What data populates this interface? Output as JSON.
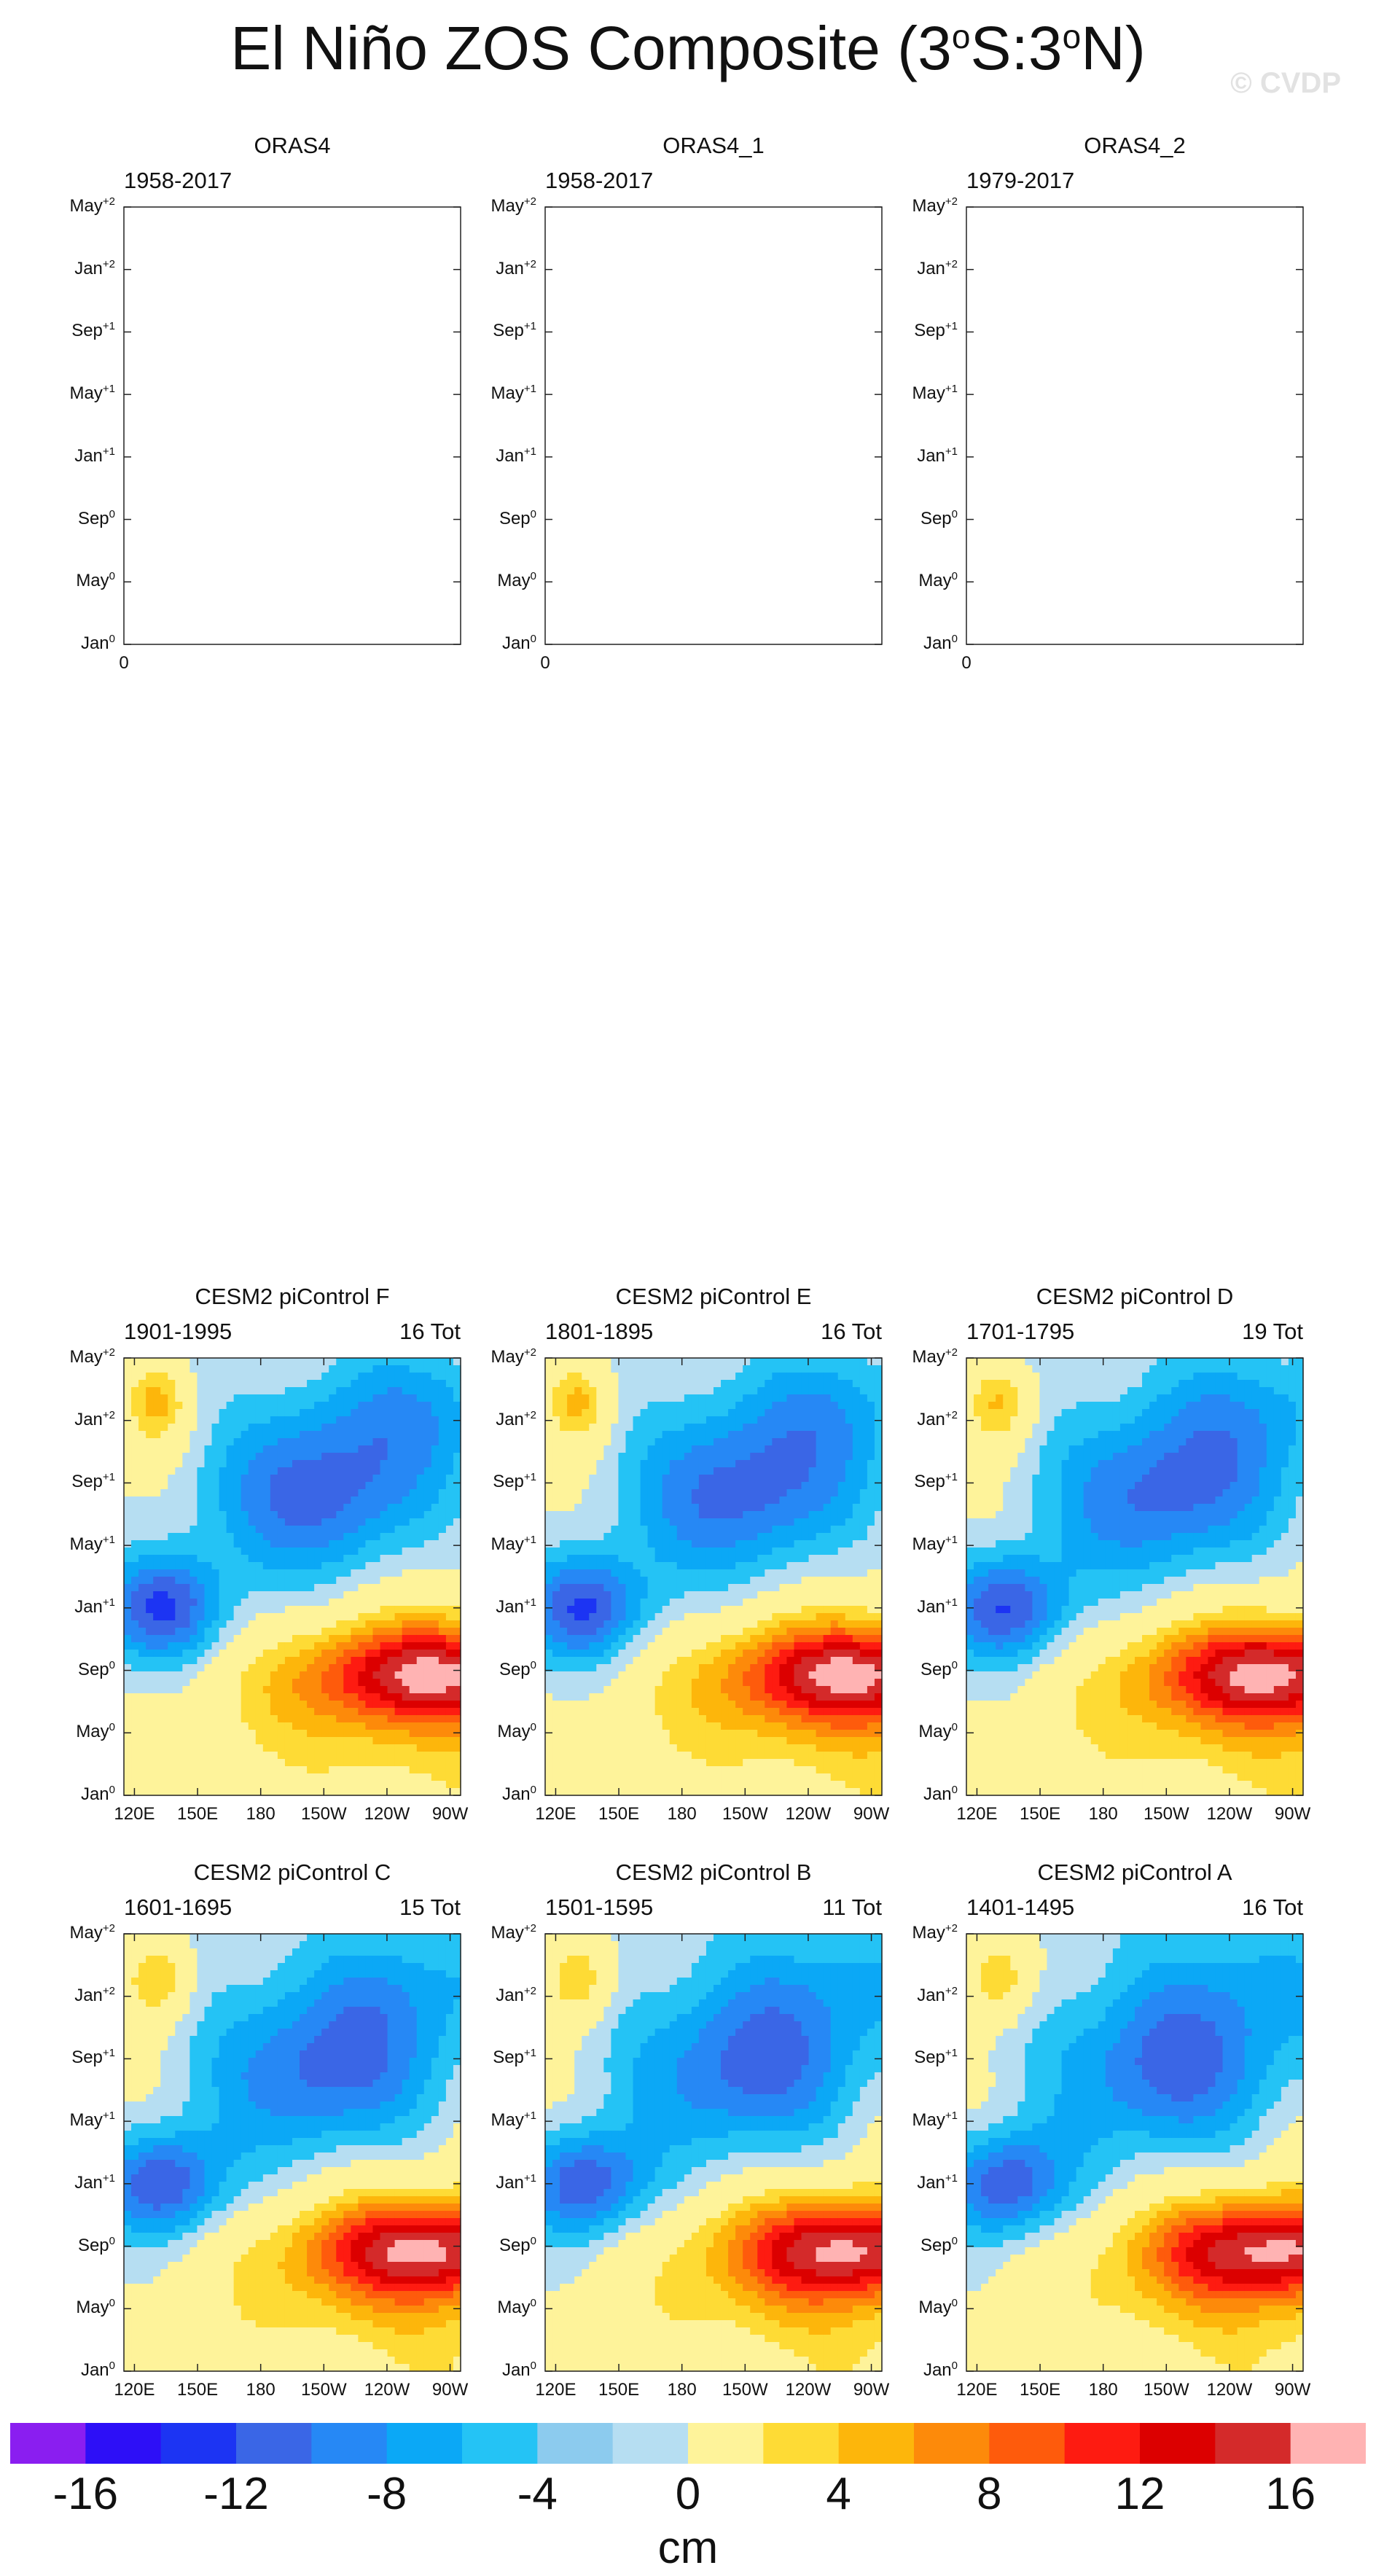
{
  "title": {
    "main": "El Niño ZOS Composite (3",
    "deg1": "o",
    "mid": "S:3",
    "deg2": "o",
    "end": "N)"
  },
  "watermark": "© CVDP",
  "colors": {
    "levels": [
      "#8a1ef0",
      "#2d0ff7",
      "#1c34f3",
      "#3a66e6",
      "#2688f5",
      "#0ba8f6",
      "#24c3f5",
      "#8ccbee",
      "#b6def2",
      "#fef39a",
      "#fedb35",
      "#fdb60b",
      "#fd8a0a",
      "#fe5b0c",
      "#fe1b11",
      "#dc0000",
      "#d42a2a",
      "#ffb3b3"
    ],
    "contour_line": "#555555",
    "frame": "#222222"
  },
  "chart_data": [
    {
      "type": "heatmap",
      "name": "ORAS4",
      "period": "1958-2017",
      "count": "",
      "empty": true,
      "yticks": [
        "Jan",
        "0",
        "May",
        "0",
        "Sep",
        "0",
        "Jan",
        "+1",
        "May",
        "+1",
        "Sep",
        "+1",
        "Jan",
        "+2",
        "May",
        "+2"
      ],
      "xticks": [
        "0"
      ]
    },
    {
      "type": "heatmap",
      "name": "ORAS4_1",
      "period": "1958-2017",
      "count": "",
      "empty": true,
      "xticks": [
        "0"
      ]
    },
    {
      "type": "heatmap",
      "name": "ORAS4_2",
      "period": "1979-2017",
      "count": "",
      "empty": true,
      "xticks": [
        "0"
      ]
    },
    {
      "type": "heatmap",
      "name": "CESM2 piControl F",
      "period": "1901-1995",
      "count": "16 Tot",
      "empty": false,
      "xticks": [
        "120E",
        "150E",
        "180",
        "150W",
        "120W",
        "90W"
      ]
    },
    {
      "type": "heatmap",
      "name": "CESM2 piControl E",
      "period": "1801-1895",
      "count": "16 Tot",
      "empty": false,
      "xticks": [
        "120E",
        "150E",
        "180",
        "150W",
        "120W",
        "90W"
      ]
    },
    {
      "type": "heatmap",
      "name": "CESM2 piControl D",
      "period": "1701-1795",
      "count": "19 Tot",
      "empty": false,
      "xticks": [
        "120E",
        "150E",
        "180",
        "150W",
        "120W",
        "90W"
      ]
    },
    {
      "type": "heatmap",
      "name": "CESM2 piControl C",
      "period": "1601-1695",
      "count": "15 Tot",
      "empty": false,
      "xticks": [
        "120E",
        "150E",
        "180",
        "150W",
        "120W",
        "90W"
      ]
    },
    {
      "type": "heatmap",
      "name": "CESM2 piControl B",
      "period": "1501-1595",
      "count": "11 Tot",
      "empty": false,
      "xticks": [
        "120E",
        "150E",
        "180",
        "150W",
        "120W",
        "90W"
      ]
    },
    {
      "type": "heatmap",
      "name": "CESM2 piControl A",
      "period": "1401-1495",
      "count": "16 Tot",
      "empty": false,
      "xticks": [
        "120E",
        "150E",
        "180",
        "150W",
        "120W",
        "90W"
      ]
    }
  ],
  "axis": {
    "ytick_labels": [
      {
        "m": "Jan",
        "s": "0"
      },
      {
        "m": "May",
        "s": "0"
      },
      {
        "m": "Sep",
        "s": "0"
      },
      {
        "m": "Jan",
        "s": "+1"
      },
      {
        "m": "May",
        "s": "+1"
      },
      {
        "m": "Sep",
        "s": "+1"
      },
      {
        "m": "Jan",
        "s": "+2"
      },
      {
        "m": "May",
        "s": "+2"
      }
    ],
    "xtick_labels_full": [
      "120E",
      "150E",
      "180",
      "150W",
      "120W",
      "90W"
    ],
    "xtick_label_empty": "0",
    "x_range_deg_east": [
      115,
      275
    ],
    "y_range_months": [
      0,
      28
    ]
  },
  "colorbar": {
    "labels": [
      "-16",
      "-12",
      "-8",
      "-4",
      "0",
      "4",
      "8",
      "12",
      "16"
    ],
    "units": "cm"
  }
}
